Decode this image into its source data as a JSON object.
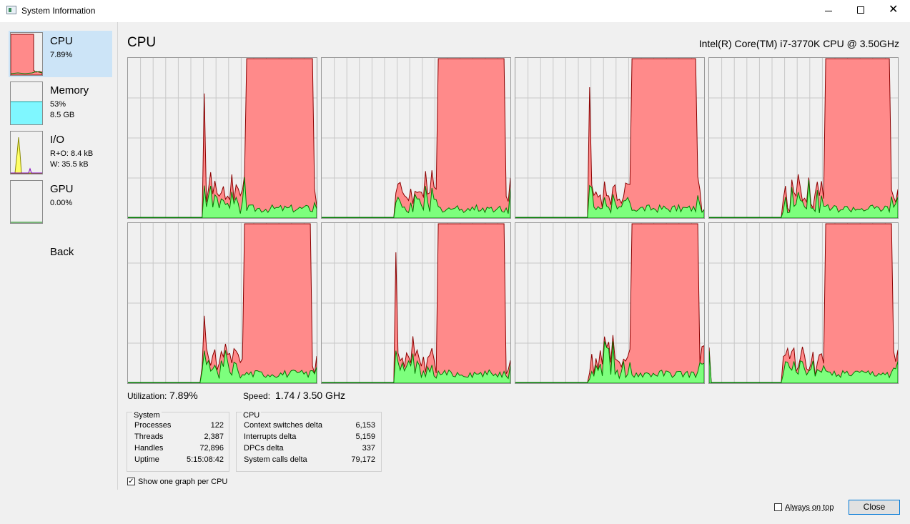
{
  "window": {
    "title": "System Information",
    "min_icon": "minimize-icon",
    "max_icon": "maximize-icon",
    "close_glyph": "✕"
  },
  "sidebar": {
    "items": [
      {
        "name": "CPU",
        "line1": "7.89%",
        "line2": ""
      },
      {
        "name": "Memory",
        "line1": "53%",
        "line2": "8.5 GB"
      },
      {
        "name": "I/O",
        "line1": "R+O: 8.4 kB",
        "line2": "W: 35.5 kB"
      },
      {
        "name": "GPU",
        "line1": "0.00%",
        "line2": ""
      }
    ],
    "back": "Back",
    "memory_fraction": 0.53
  },
  "main": {
    "title": "CPU",
    "cpu_model": "Intel(R) Core(TM) i7-3770K CPU @ 3.50GHz",
    "utilization_label": "Utilization:",
    "utilization_value": "7.89%",
    "speed_label": "Speed:",
    "speed_value": "1.74 / 3.50 GHz",
    "graph_count": 8,
    "colors": {
      "kernel_fill": "#ff8a8a",
      "kernel_line": "#8b0000",
      "user_fill": "#7dff7d",
      "user_line": "#007a00",
      "grid": "#c8c8c8",
      "background": "#f0f0f0"
    }
  },
  "system_box": {
    "title": "System",
    "rows": [
      {
        "label": "Processes",
        "value": "122"
      },
      {
        "label": "Threads",
        "value": "2,387"
      },
      {
        "label": "Handles",
        "value": "72,896"
      },
      {
        "label": "Uptime",
        "value": "5:15:08:42"
      }
    ]
  },
  "cpu_box": {
    "title": "CPU",
    "rows": [
      {
        "label": "Context switches delta",
        "value": "6,153"
      },
      {
        "label": "Interrupts delta",
        "value": "5,159"
      },
      {
        "label": "DPCs delta",
        "value": "337"
      },
      {
        "label": "System calls delta",
        "value": "79,172"
      }
    ]
  },
  "options": {
    "per_cpu_label": "Show one graph per CPU",
    "per_cpu_checked": true
  },
  "footer": {
    "always_on_top_label": "Always on top",
    "always_on_top_checked": false,
    "close_label": "Close"
  }
}
